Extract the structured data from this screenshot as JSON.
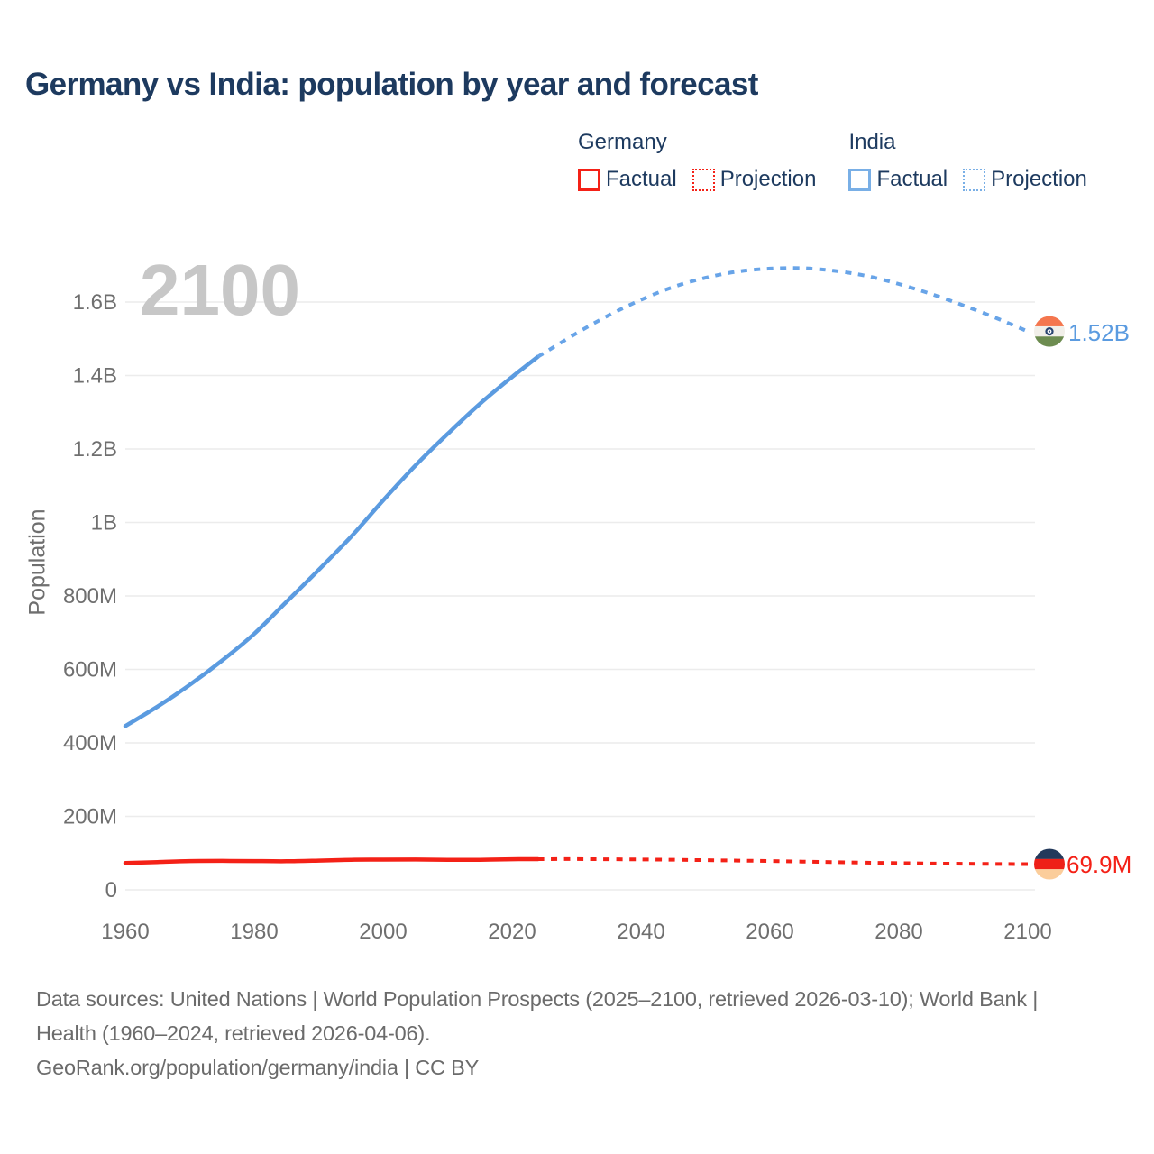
{
  "title": "Germany vs India: population by year and forecast",
  "watermark": "2100",
  "legend": {
    "groups": [
      {
        "name": "Germany",
        "items": [
          {
            "label": "Factual",
            "style": "solid"
          },
          {
            "label": "Projection",
            "style": "dotted"
          }
        ]
      },
      {
        "name": "India",
        "items": [
          {
            "label": "Factual",
            "style": "solid"
          },
          {
            "label": "Projection",
            "style": "dotted"
          }
        ]
      }
    ]
  },
  "end_labels": {
    "india": "1.52B",
    "germany": "69.9M"
  },
  "colors": {
    "title_text": "#1d3a5f",
    "axis_text": "#6f6f6f",
    "gridline": "#ececec",
    "watermark": "#c7c7c7",
    "footer_text": "#6b6b6b",
    "germany_line": "#f42117",
    "india_line": "#5b9be0",
    "india_projection": "#68a4e8",
    "india_legend_box": "#79afe6",
    "india_flag": {
      "saffron": "#f4764e",
      "white": "#f1efe9",
      "navy": "#2a4570",
      "green": "#6d8c50"
    },
    "germany_flag": {
      "black": "#23395b",
      "red": "#ee2018",
      "gold": "#fbcd9b"
    }
  },
  "footer": {
    "sources_line": "Data sources: United Nations | World Population Prospects (2025–2100, retrieved 2026-03-10); World Bank | Health (1960–2024, retrieved 2026-04-06).",
    "attribution_line": "GeoRank.org/population/germany/india | CC BY"
  },
  "chart_data": {
    "type": "line",
    "title": "Germany vs India: population by year and forecast",
    "xlabel": "",
    "unit": "millions of people",
    "xlim": [
      1960,
      2100
    ],
    "ylim_millions": [
      0,
      1600
    ],
    "grid": "horizontal",
    "legend_position": "top-right",
    "x_axis": {
      "ticks": [
        1960,
        1980,
        2000,
        2020,
        2040,
        2060,
        2080,
        2100
      ]
    },
    "y_axis": {
      "title": "Population",
      "tick_labels": [
        "0",
        "200M",
        "400M",
        "600M",
        "800M",
        "1B",
        "1.2B",
        "1.4B",
        "1.6B"
      ],
      "tick_values": [
        0,
        200,
        400,
        600,
        800,
        1000,
        1200,
        1400,
        1600
      ]
    },
    "series": [
      {
        "country": "India",
        "segment": "factual",
        "style": "solid",
        "color": "#5b9be0",
        "x": [
          1960,
          1965,
          1970,
          1975,
          1980,
          1985,
          1990,
          1995,
          2000,
          2005,
          2010,
          2015,
          2020,
          2024
        ],
        "values": [
          446,
          499,
          558,
          624,
          697,
          784,
          871,
          961,
          1060,
          1155,
          1241,
          1323,
          1396,
          1451
        ]
      },
      {
        "country": "India",
        "segment": "projection",
        "style": "dotted",
        "color": "#68a4e8",
        "x": [
          2024,
          2030,
          2035,
          2040,
          2045,
          2050,
          2055,
          2060,
          2065,
          2070,
          2075,
          2080,
          2085,
          2090,
          2095,
          2100
        ],
        "values": [
          1451,
          1515,
          1564,
          1606,
          1641,
          1666,
          1683,
          1691,
          1692,
          1685,
          1671,
          1649,
          1622,
          1591,
          1557,
          1520
        ],
        "end_label": "1.52B",
        "flag": "india"
      },
      {
        "country": "Germany",
        "segment": "factual",
        "style": "solid",
        "color": "#f42117",
        "x": [
          1960,
          1965,
          1970,
          1975,
          1980,
          1985,
          1990,
          1995,
          2000,
          2005,
          2010,
          2015,
          2020,
          2024
        ],
        "values": [
          72.8,
          75.6,
          78.2,
          78.7,
          78.3,
          77.7,
          79.4,
          81.7,
          82.2,
          82.5,
          81.8,
          81.7,
          83.2,
          83.5
        ]
      },
      {
        "country": "Germany",
        "segment": "projection",
        "style": "dotted",
        "color": "#f42117",
        "x": [
          2024,
          2030,
          2040,
          2050,
          2060,
          2070,
          2080,
          2090,
          2100
        ],
        "values": [
          83.5,
          83.6,
          82.6,
          80.8,
          78.3,
          75.4,
          72.6,
          70.8,
          69.9
        ],
        "end_label": "69.9M",
        "flag": "germany"
      }
    ]
  }
}
